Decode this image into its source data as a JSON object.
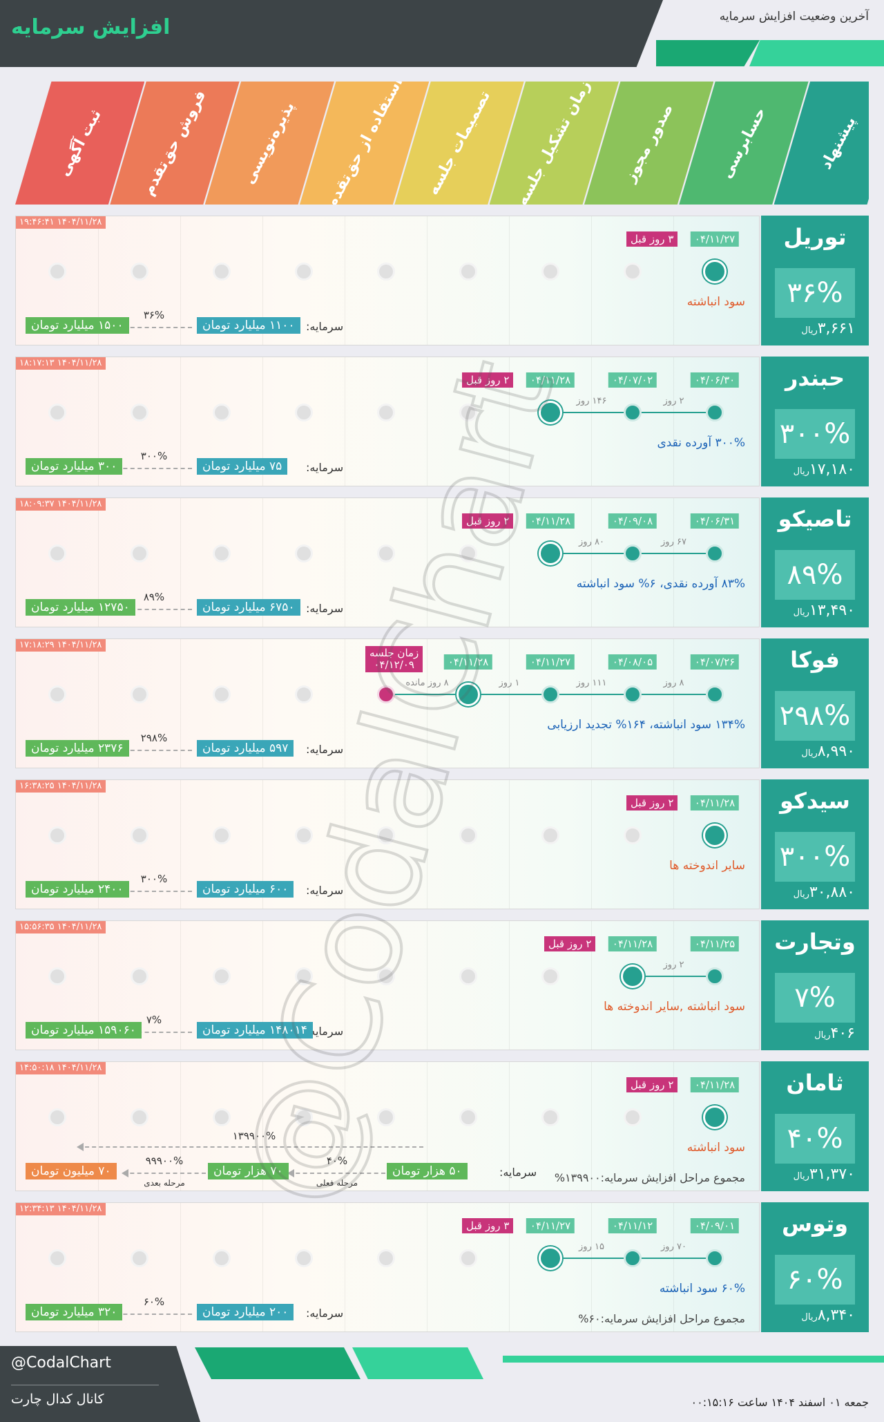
{
  "header": {
    "title": "افزایش سرمایه",
    "subtitle": "آخرین وضعیت افزایش سرمایه"
  },
  "stages": [
    {
      "label": "ثبت آگهی",
      "color": "#e8605a"
    },
    {
      "label": "فروش حق‌تقدم",
      "color": "#ec7a58"
    },
    {
      "label": "پذیره‌نویسی",
      "color": "#f19a5a"
    },
    {
      "label": "استفاده از حق‌تقدم",
      "color": "#f4b85a"
    },
    {
      "label": "تصمیمات جلسه",
      "color": "#e6cf5a"
    },
    {
      "label": "زمان تشکیل جلسه",
      "color": "#b7cf5a"
    },
    {
      "label": "صدور مجوز",
      "color": "#8cc35a"
    },
    {
      "label": "حسابرسی",
      "color": "#4fb870"
    },
    {
      "label": "پیشنهاد",
      "color": "#26a08e"
    }
  ],
  "cards": [
    {
      "symbol": "توریل",
      "percent": "۳۶%",
      "price": "۳,۶۶۱",
      "price_unit": "ریال",
      "timestamp": "۱۴۰۴/۱۱/۲۸ ۱۹:۴۶:۴۱",
      "dates": [
        "۰۴/۱۱/۲۷"
      ],
      "ago": "۳ روز قبل",
      "gaps": [],
      "description": "سود انباشته",
      "desc_color": "red",
      "capital_label": "سرمایه:",
      "capital_current": "۱۱۰۰ میلیارد تومان",
      "increase_pct": "۳۶%",
      "capital_new": "۱۵۰۰ میلیارد تومان"
    },
    {
      "symbol": "حبندر",
      "percent": "۳۰۰%",
      "price": "۱۷,۱۸۰",
      "price_unit": "ریال",
      "timestamp": "۱۴۰۴/۱۱/۲۸ ۱۸:۱۷:۱۳",
      "dates": [
        "۰۴/۰۶/۳۰",
        "۰۴/۰۷/۰۲",
        "۰۴/۱۱/۲۸"
      ],
      "ago": "۲ روز قبل",
      "gaps": [
        "۲ روز",
        "۱۴۶ روز"
      ],
      "description": "۳۰۰% آورده نقدی",
      "desc_color": "blue",
      "capital_label": "سرمایه:",
      "capital_current": "۷۵ میلیارد تومان",
      "increase_pct": "۳۰۰%",
      "capital_new": "۳۰۰ میلیارد تومان"
    },
    {
      "symbol": "تاصیکو",
      "percent": "۸۹%",
      "price": "۱۳,۴۹۰",
      "price_unit": "ریال",
      "timestamp": "۱۴۰۴/۱۱/۲۸ ۱۸:۰۹:۳۷",
      "dates": [
        "۰۴/۰۶/۳۱",
        "۰۴/۰۹/۰۸",
        "۰۴/۱۱/۲۸"
      ],
      "ago": "۲ روز قبل",
      "gaps": [
        "۶۷ روز",
        "۸۰ روز"
      ],
      "description": "۸۳% آورده نقدی، ۶% سود انباشته",
      "desc_color": "blue",
      "capital_label": "سرمایه:",
      "capital_current": "۶۷۵۰ میلیارد تومان",
      "increase_pct": "۸۹%",
      "capital_new": "۱۲۷۵۰ میلیارد تومان"
    },
    {
      "symbol": "فوکا",
      "percent": "۲۹۸%",
      "price": "۸,۹۹۰",
      "price_unit": "ریال",
      "timestamp": "۱۴۰۴/۱۱/۲۸ ۱۷:۱۸:۲۹",
      "dates": [
        "۰۴/۰۷/۲۶",
        "۰۴/۰۸/۰۵",
        "۰۴/۱۱/۲۷",
        "۰۴/۱۱/۲۸"
      ],
      "ago": "",
      "gaps": [
        "۸ روز",
        "۱۱۱ روز",
        "۱ روز",
        "۸ روز مانده"
      ],
      "meeting_label": "زمان جلسه",
      "meeting_date": "۰۴/۱۲/۰۹",
      "description": "۱۳۴% سود انباشته، ۱۶۴% تجدید ارزیابی",
      "desc_color": "blue",
      "capital_label": "سرمایه:",
      "capital_current": "۵۹۷ میلیارد تومان",
      "increase_pct": "۲۹۸%",
      "capital_new": "۲۳۷۶ میلیارد تومان"
    },
    {
      "symbol": "سیدکو",
      "percent": "۳۰۰%",
      "price": "۳۰,۸۸۰",
      "price_unit": "ریال",
      "timestamp": "۱۴۰۴/۱۱/۲۸ ۱۶:۳۸:۲۵",
      "dates": [
        "۰۴/۱۱/۲۸"
      ],
      "ago": "۲ روز قبل",
      "gaps": [],
      "description": "سایر اندوخته ها",
      "desc_color": "red",
      "capital_label": "سرمایه:",
      "capital_current": "۶۰۰ میلیارد تومان",
      "increase_pct": "۳۰۰%",
      "capital_new": "۲۴۰۰ میلیارد تومان"
    },
    {
      "symbol": "وتجارت",
      "percent": "۷%",
      "price": "۴۰۶",
      "price_unit": "ریال",
      "timestamp": "۱۴۰۴/۱۱/۲۸ ۱۵:۵۶:۳۵",
      "dates": [
        "۰۴/۱۱/۲۵",
        "۰۴/۱۱/۲۸"
      ],
      "ago": "۲ روز قبل",
      "gaps": [
        "۲ روز"
      ],
      "description": "سود انباشته ,سایر اندوخته ها",
      "desc_color": "red",
      "capital_label": "سرمایه:",
      "capital_current": "۱۴۸۰۱۴ میلیارد تومان",
      "increase_pct": "۷%",
      "capital_new": "۱۵۹۰۶۰ میلیارد تومان"
    },
    {
      "symbol": "ثامان",
      "percent": "۴۰%",
      "price": "۳۱,۳۷۰",
      "price_unit": "ریال",
      "timestamp": "۱۴۰۴/۱۱/۲۸ ۱۴:۵۰:۱۸",
      "dates": [
        "۰۴/۱۱/۲۸"
      ],
      "ago": "۲ روز قبل",
      "gaps": [],
      "description": "سود انباشته",
      "desc_color": "red",
      "summary": "مجموع مراحل افزایش سرمایه:۱۳۹۹۰۰%",
      "capital_label": "سرمایه:",
      "capital_current": "۵۰ هزار تومان",
      "increase_pct": "۴۰%",
      "capital_mid": "۷۰ هزار تومان",
      "mid_caption": "مرحله فعلی",
      "next_pct": "۹۹۹۰۰%",
      "next_caption": "مرحله بعدی",
      "capital_next": "۷۰ میلیون تومان",
      "total_pct": "۱۳۹۹۰۰%"
    },
    {
      "symbol": "وتوس",
      "percent": "۶۰%",
      "price": "۸,۳۴۰",
      "price_unit": "ریال",
      "timestamp": "۱۴۰۴/۱۱/۲۸ ۱۲:۳۴:۱۳",
      "dates": [
        "۰۴/۰۹/۰۱",
        "۰۴/۱۱/۱۲",
        "۰۴/۱۱/۲۷"
      ],
      "ago": "۳ روز قبل",
      "gaps": [
        "۷۰ روز",
        "۱۵ روز"
      ],
      "description": "۶۰% سود انباشته",
      "desc_color": "blue",
      "summary": "مجموع مراحل افزایش سرمایه:۶۰%",
      "capital_label": "سرمایه:",
      "capital_current": "۲۰۰ میلیارد تومان",
      "increase_pct": "۶۰%",
      "capital_new": "۳۲۰ میلیارد تومان"
    }
  ],
  "watermark": "@CodalChart",
  "footer": {
    "handle": "@CodalChart",
    "channel": "کانال کدال چارت",
    "date": "جمعه ۰۱ اسفند ۱۴۰۴ ساعت ۰۰:۱۵:۱۶"
  }
}
